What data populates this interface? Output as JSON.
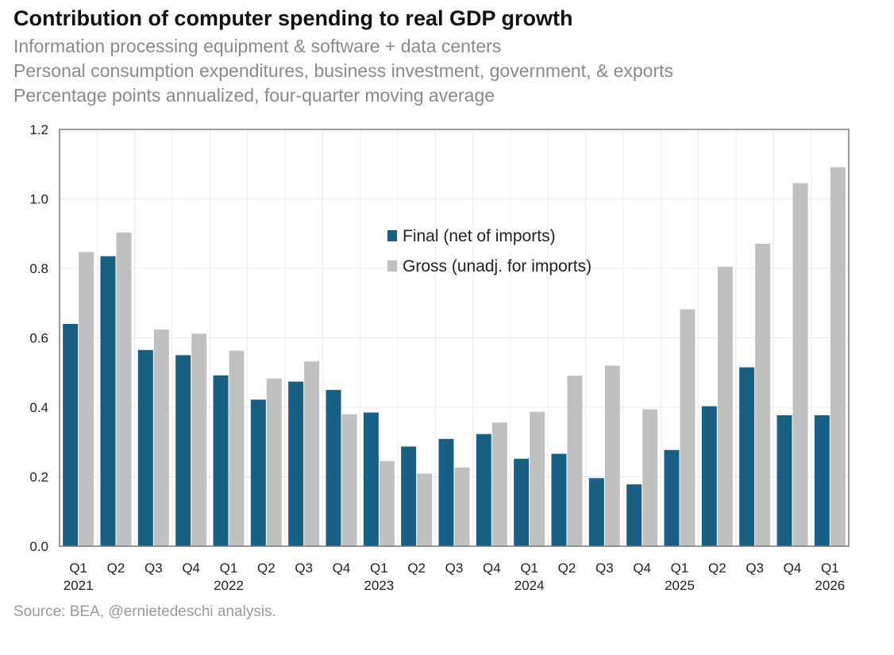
{
  "title": "Contribution of computer spending to real GDP growth",
  "subtitles": [
    "Information processing equipment & software + data centers",
    "Personal consumption expenditures, business investment, government, & exports",
    "Percentage points annualized, four-quarter moving average"
  ],
  "source": "Source: BEA, @ernietedeschi analysis.",
  "colors": {
    "final": "#185f84",
    "gross": "#c0c0c0",
    "grid": "#ebebeb",
    "axis": "#7a7a7a"
  },
  "chart_data": {
    "type": "bar",
    "categories": [
      "Q1 2021",
      "Q2 2021",
      "Q3 2021",
      "Q4 2021",
      "Q1 2022",
      "Q2 2022",
      "Q3 2022",
      "Q4 2022",
      "Q1 2023",
      "Q2 2023",
      "Q3 2023",
      "Q4 2023",
      "Q1 2024",
      "Q2 2024",
      "Q3 2024",
      "Q4 2024",
      "Q1 2025",
      "Q2 2025",
      "Q3 2025",
      "Q4 2025",
      "Q1 2026"
    ],
    "tick_labels": [
      {
        "q": "Q1",
        "year": "2021"
      },
      {
        "q": "Q2",
        "year": ""
      },
      {
        "q": "Q3",
        "year": ""
      },
      {
        "q": "Q4",
        "year": ""
      },
      {
        "q": "Q1",
        "year": "2022"
      },
      {
        "q": "Q2",
        "year": ""
      },
      {
        "q": "Q3",
        "year": ""
      },
      {
        "q": "Q4",
        "year": ""
      },
      {
        "q": "Q1",
        "year": "2023"
      },
      {
        "q": "Q2",
        "year": ""
      },
      {
        "q": "Q3",
        "year": ""
      },
      {
        "q": "Q4",
        "year": ""
      },
      {
        "q": "Q1",
        "year": "2024"
      },
      {
        "q": "Q2",
        "year": ""
      },
      {
        "q": "Q3",
        "year": ""
      },
      {
        "q": "Q4",
        "year": ""
      },
      {
        "q": "Q1",
        "year": "2025"
      },
      {
        "q": "Q2",
        "year": ""
      },
      {
        "q": "Q3",
        "year": ""
      },
      {
        "q": "Q4",
        "year": ""
      },
      {
        "q": "Q1",
        "year": "2026"
      }
    ],
    "series": [
      {
        "name": "Final (net of imports)",
        "values": [
          0.64,
          0.835,
          0.565,
          0.55,
          0.492,
          0.422,
          0.474,
          0.45,
          0.385,
          0.287,
          0.309,
          0.323,
          0.252,
          0.266,
          0.196,
          0.178,
          0.277,
          0.403,
          0.515,
          0.377,
          0.377
        ]
      },
      {
        "name": "Gross (unadj. for imports)",
        "values": [
          0.847,
          0.903,
          0.624,
          0.612,
          0.563,
          0.483,
          0.532,
          0.38,
          0.245,
          0.209,
          0.227,
          0.356,
          0.387,
          0.491,
          0.52,
          0.394,
          0.682,
          0.805,
          0.871,
          1.045,
          1.091
        ]
      }
    ],
    "ylim": [
      0,
      1.2
    ],
    "yticks": [
      "0.0",
      "0.2",
      "0.4",
      "0.6",
      "0.8",
      "1.0",
      "1.2"
    ],
    "legend_position": "top-center",
    "grid": true
  }
}
